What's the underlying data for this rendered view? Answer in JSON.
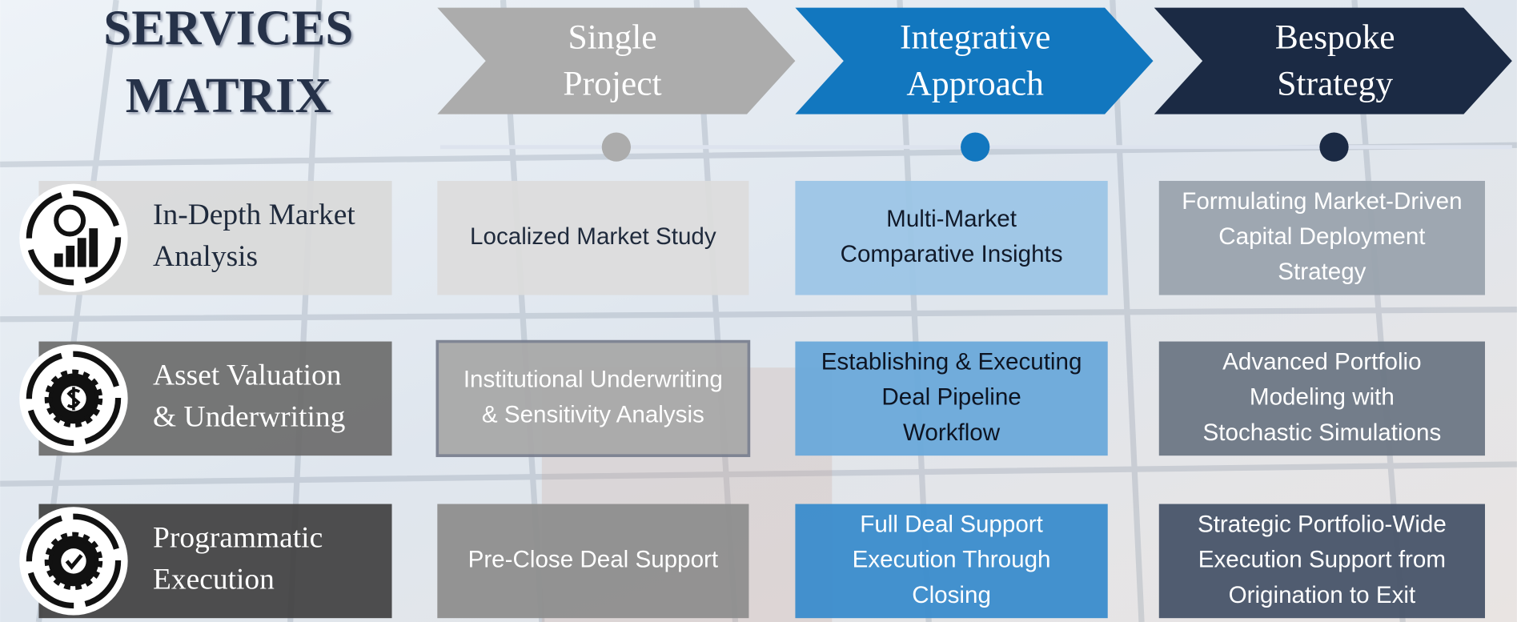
{
  "title_lines": [
    "SERVICES",
    "MATRIX"
  ],
  "columns": [
    {
      "lines": [
        "Single",
        "Project"
      ]
    },
    {
      "lines": [
        "Integrative",
        "Approach"
      ]
    },
    {
      "lines": [
        "Bespoke",
        "Strategy"
      ]
    }
  ],
  "rows": [
    {
      "label_lines": [
        "In-Depth Market",
        "Analysis"
      ],
      "cells": [
        [
          "Localized Market Study"
        ],
        [
          "Multi-Market",
          "Comparative Insights"
        ],
        [
          "Formulating Market-Driven",
          "Capital Deployment",
          "Strategy"
        ]
      ]
    },
    {
      "label_lines": [
        "Asset Valuation",
        "& Underwriting"
      ],
      "cells": [
        [
          "Institutional Underwriting",
          "& Sensitivity Analysis"
        ],
        [
          "Establishing & Executing",
          "Deal Pipeline",
          "Workflow"
        ],
        [
          "Advanced Portfolio",
          "Modeling with",
          "Stochastic Simulations"
        ]
      ]
    },
    {
      "label_lines": [
        "Programmatic",
        "Execution"
      ],
      "cells": [
        [
          "Pre-Close Deal Support"
        ],
        [
          "Full Deal Support",
          "Execution  Through",
          "Closing"
        ],
        [
          "Strategic Portfolio-Wide",
          "Execution Support from",
          "Origination to Exit"
        ]
      ]
    }
  ]
}
